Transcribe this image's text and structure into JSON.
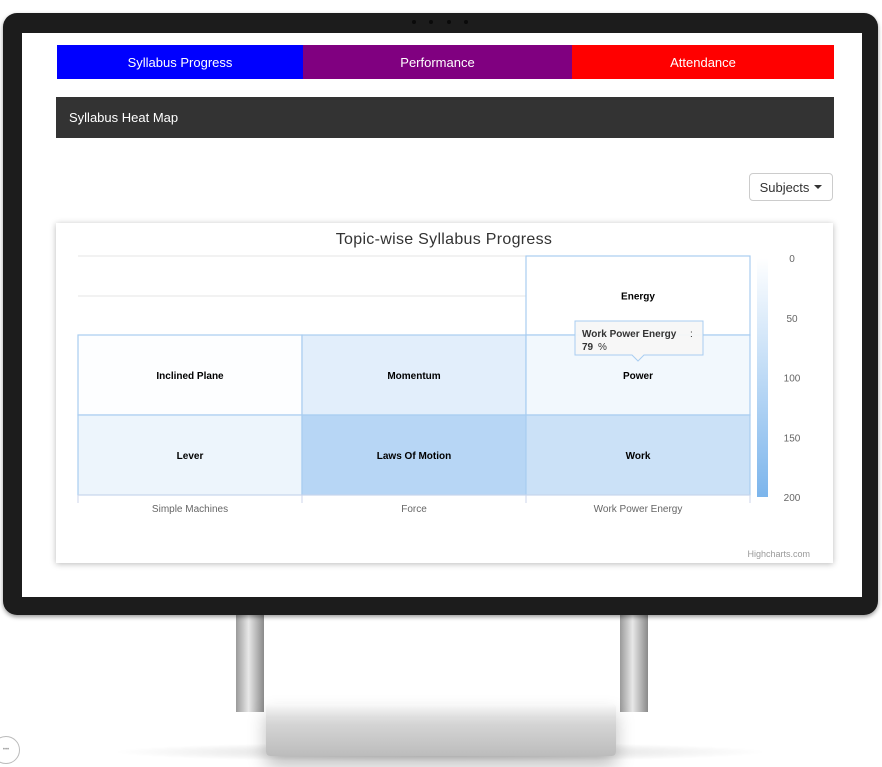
{
  "tabs": [
    {
      "label": "Syllabus Progress",
      "color": "#0000ff"
    },
    {
      "label": "Performance",
      "color": "#800080"
    },
    {
      "label": "Attendance",
      "color": "#ff0000"
    }
  ],
  "header": {
    "title": "Syllabus Heat Map"
  },
  "subjects_button": {
    "label": "Subjects"
  },
  "credits": "Highcharts.com",
  "tooltip": {
    "series": "Work Power Energy",
    "value": "79",
    "unit": "%"
  },
  "chart_data": {
    "type": "heatmap",
    "title": "Topic-wise Syllabus Progress",
    "categories": [
      "Simple Machines",
      "Force",
      "Work Power Energy"
    ],
    "color_axis": {
      "min": 0,
      "max": 200,
      "ticks": [
        0,
        50,
        100,
        150,
        200
      ],
      "min_color": "#ffffff",
      "max_color": "#7cb5ec"
    },
    "cells": [
      {
        "subject": "Work Power Energy",
        "topic": "Energy",
        "value": 0,
        "row": 0
      },
      {
        "subject": "Simple Machines",
        "topic": "Inclined Plane",
        "value": 3,
        "row": 1
      },
      {
        "subject": "Force",
        "topic": "Momentum",
        "value": 45,
        "row": 1
      },
      {
        "subject": "Work Power Energy",
        "topic": "Power",
        "value": 20,
        "row": 1
      },
      {
        "subject": "Simple Machines",
        "topic": "Lever",
        "value": 28,
        "row": 2
      },
      {
        "subject": "Force",
        "topic": "Laws Of Motion",
        "value": 110,
        "row": 2
      },
      {
        "subject": "Work Power Energy",
        "topic": "Work",
        "value": 80,
        "row": 2
      }
    ]
  }
}
